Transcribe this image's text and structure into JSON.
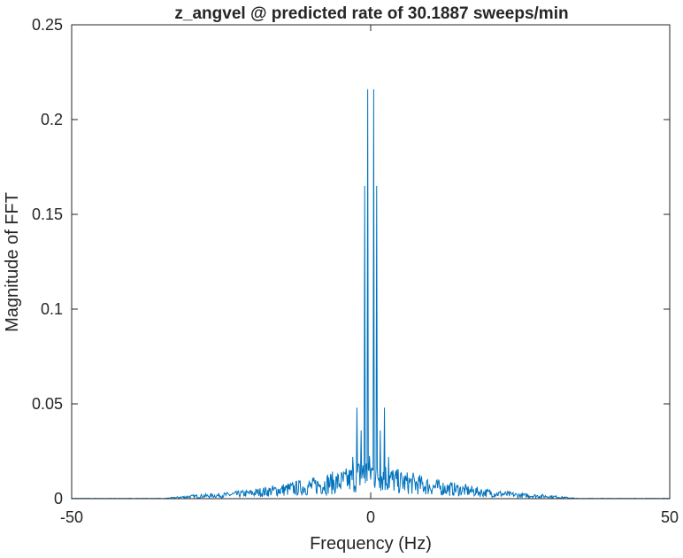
{
  "chart_data": {
    "type": "line",
    "title": "z_angvel @ predicted rate of 30.1887 sweeps/min",
    "xlabel": "Frequency (Hz)",
    "ylabel": "Magnitude of FFT",
    "xlim": [
      -50,
      50
    ],
    "ylim": [
      0,
      0.25
    ],
    "x_ticks": [
      -50,
      0,
      50
    ],
    "x_tick_labels": [
      "-50",
      "0",
      "50"
    ],
    "y_ticks": [
      0,
      0.05,
      0.1,
      0.15,
      0.2,
      0.25
    ],
    "y_tick_labels": [
      "0",
      "0.05",
      "0.1",
      "0.15",
      "0.2",
      "0.25"
    ],
    "grid": false,
    "line_color": "#0072BD",
    "peaks": [
      {
        "x": -0.5,
        "y": 0.216
      },
      {
        "x": 0.5,
        "y": 0.216
      },
      {
        "x": -1.0,
        "y": 0.165
      },
      {
        "x": 1.0,
        "y": 0.165
      },
      {
        "x": -2.3,
        "y": 0.048
      },
      {
        "x": 2.3,
        "y": 0.048
      },
      {
        "x": -1.6,
        "y": 0.036
      },
      {
        "x": 1.6,
        "y": 0.036
      },
      {
        "x": -3.0,
        "y": 0.022
      },
      {
        "x": 3.0,
        "y": 0.022
      }
    ],
    "envelope": [
      {
        "x": -35,
        "y": 0.0
      },
      {
        "x": -30,
        "y": 0.002
      },
      {
        "x": -25,
        "y": 0.003
      },
      {
        "x": -20,
        "y": 0.005
      },
      {
        "x": -15,
        "y": 0.008
      },
      {
        "x": -10,
        "y": 0.011
      },
      {
        "x": -7,
        "y": 0.014
      },
      {
        "x": -5,
        "y": 0.015
      },
      {
        "x": -3,
        "y": 0.018
      },
      {
        "x": -1.5,
        "y": 0.022
      },
      {
        "x": 0,
        "y": 0.024
      },
      {
        "x": 1.5,
        "y": 0.022
      },
      {
        "x": 3,
        "y": 0.018
      },
      {
        "x": 5,
        "y": 0.015
      },
      {
        "x": 7,
        "y": 0.014
      },
      {
        "x": 10,
        "y": 0.011
      },
      {
        "x": 15,
        "y": 0.008
      },
      {
        "x": 20,
        "y": 0.005
      },
      {
        "x": 25,
        "y": 0.003
      },
      {
        "x": 30,
        "y": 0.002
      },
      {
        "x": 35,
        "y": 0.0
      }
    ]
  }
}
